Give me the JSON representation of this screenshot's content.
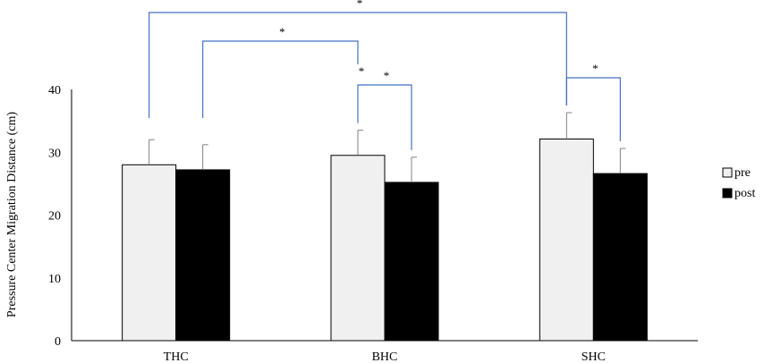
{
  "chart_data": {
    "type": "bar",
    "categories": [
      "THC",
      "BHC",
      "SHC"
    ],
    "series": [
      {
        "name": "pre",
        "values": [
          28.0,
          29.5,
          32.1
        ],
        "errors": [
          4.0,
          4.0,
          4.2
        ],
        "color": "#f0f0f0"
      },
      {
        "name": "post",
        "values": [
          27.2,
          25.2,
          26.6
        ],
        "errors": [
          4.0,
          4.0,
          4.0
        ],
        "color": "#000000"
      }
    ],
    "ylabel": "Pressure Center Migration Distance (cm)",
    "xlabel": "",
    "ylim": [
      0,
      40
    ],
    "yticks": [
      0,
      10,
      20,
      30,
      40
    ],
    "legend_position": "right",
    "significance_marker": "*",
    "significance_color": "#4472c4",
    "significance": [
      {
        "label": "*",
        "from": {
          "category": "THC",
          "series": "pre"
        },
        "to": {
          "category": "SHC",
          "series": "pre"
        }
      },
      {
        "label": "*",
        "from": {
          "category": "THC",
          "series": "post"
        },
        "to": {
          "category": "BHC",
          "series": "pre"
        }
      },
      {
        "label": "*",
        "from": {
          "category": "BHC",
          "series": "pre"
        },
        "to": {
          "category": "BHC",
          "series": "post"
        }
      },
      {
        "label": "*",
        "from": {
          "category": "SHC",
          "series": "pre"
        },
        "to": {
          "category": "SHC",
          "series": "post"
        }
      }
    ]
  }
}
